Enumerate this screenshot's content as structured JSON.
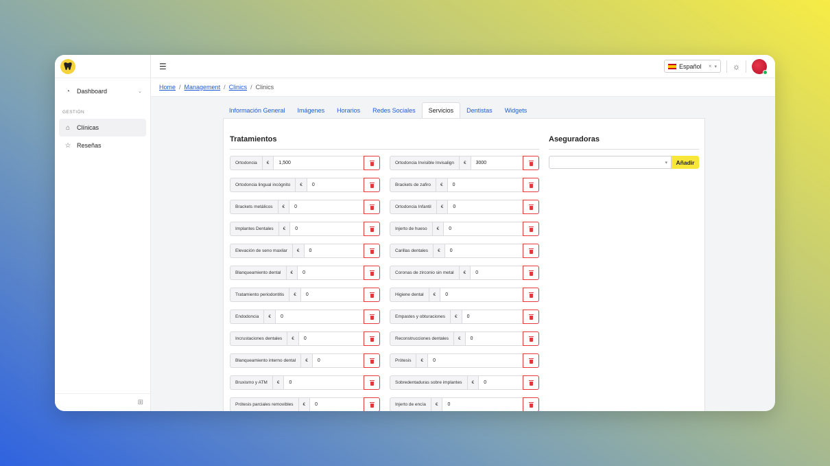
{
  "sidebar": {
    "dashboard_label": "Dashboard",
    "section_label": "GESTIÓN",
    "items": [
      {
        "label": "Clínicas",
        "icon": "home-icon"
      },
      {
        "label": "Reseñas",
        "icon": "star-icon"
      }
    ]
  },
  "topbar": {
    "language": "Español",
    "clear_symbol": "×"
  },
  "breadcrumb": {
    "items": [
      "Home",
      "Management",
      "Clinics"
    ],
    "current": "Clinics"
  },
  "tabs": [
    "Información General",
    "Imágenes",
    "Horarios",
    "Redes Sociales",
    "Servicios",
    "Dentistas",
    "Widgets"
  ],
  "active_tab": "Servicios",
  "tratamientos": {
    "title": "Tratamientos",
    "currency": "€",
    "left": [
      {
        "label": "Ortodoncia",
        "value": "1,500"
      },
      {
        "label": "Ortodoncia lingual incógnito",
        "value": "0"
      },
      {
        "label": "Brackets metálicos",
        "value": "0"
      },
      {
        "label": "Implantes Dentales",
        "value": "0"
      },
      {
        "label": "Elevación de seno maxilar",
        "value": "0"
      },
      {
        "label": "Blanqueamiento dental",
        "value": "0"
      },
      {
        "label": "Tratamiento periodontitis",
        "value": "0"
      },
      {
        "label": "Endodoncia",
        "value": "0"
      },
      {
        "label": "Incrustaciones dentales",
        "value": "0"
      },
      {
        "label": "Blanqueamiento interno dental",
        "value": "0"
      },
      {
        "label": "Bruxismo y ATM",
        "value": "0"
      },
      {
        "label": "Prótesis parciales removibles",
        "value": "0"
      }
    ],
    "right": [
      {
        "label": "Ortodoncia Invisible Invisalign",
        "value": "3000"
      },
      {
        "label": "Brackets de zafiro",
        "value": "0"
      },
      {
        "label": "Ortodoncia Infantil",
        "value": "0"
      },
      {
        "label": "Injerto de hueso",
        "value": "0"
      },
      {
        "label": "Carillas dentales",
        "value": "0"
      },
      {
        "label": "Coronas de zirconio sin metal",
        "value": "0"
      },
      {
        "label": "Higiene dental",
        "value": "0"
      },
      {
        "label": "Empastes y obturaciones",
        "value": "0"
      },
      {
        "label": "Reconstrucciones dentales",
        "value": "0"
      },
      {
        "label": "Prótesis",
        "value": "0"
      },
      {
        "label": "Sobredentaduras sobre implantes",
        "value": "0"
      },
      {
        "label": "Injerto de encía",
        "value": "0"
      }
    ]
  },
  "aseguradoras": {
    "title": "Aseguradoras",
    "add_label": "Añadir"
  }
}
